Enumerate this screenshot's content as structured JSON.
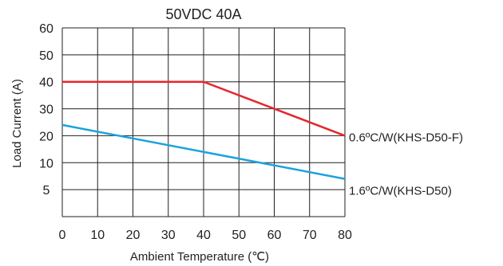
{
  "chart_data": {
    "type": "line",
    "title": "50VDC 40A",
    "xlabel": "Ambient Temperature (℃)",
    "ylabel": "Load Current (A)",
    "x_ticks": [
      "0",
      "10",
      "20",
      "30",
      "40",
      "50",
      "60",
      "70",
      "80"
    ],
    "y_ticks": [
      "5",
      "10",
      "20",
      "30",
      "40",
      "50",
      "60"
    ],
    "xlim": [
      0,
      80
    ],
    "grid": true,
    "series": [
      {
        "name": "0.6ºC/W(KHS-D50-F)",
        "color": "#e5262c",
        "x": [
          0,
          40,
          80
        ],
        "y": [
          40,
          40,
          20
        ]
      },
      {
        "name": "1.6ºC/W(KHS-D50)",
        "color": "#1aa3dd",
        "x": [
          0,
          80
        ],
        "y": [
          24,
          7
        ]
      }
    ]
  }
}
